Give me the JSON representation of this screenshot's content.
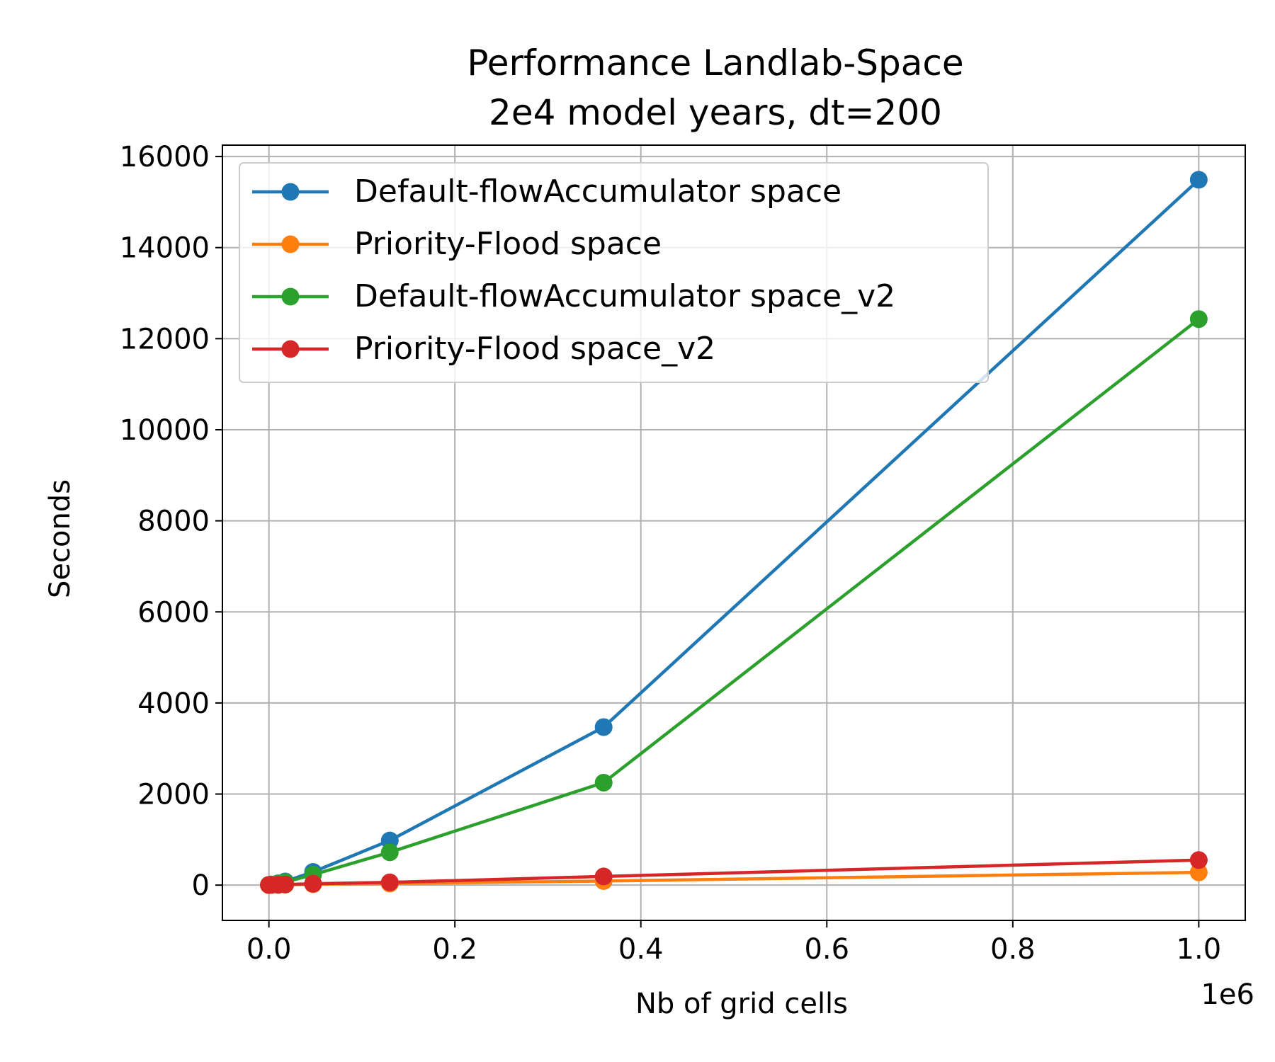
{
  "chart_data": {
    "type": "line",
    "title_line1": "Performance Landlab-Space",
    "title_line2": "2e4 model years, dt=200",
    "xlabel": "Nb of grid cells",
    "ylabel": "Seconds",
    "x_offset_text": "1e6",
    "xlim": [
      -50000,
      1050000
    ],
    "ylim": [
      -775,
      16250
    ],
    "x_ticks": [
      0,
      200000,
      400000,
      600000,
      800000,
      1000000
    ],
    "x_tick_labels": [
      "0.0",
      "0.2",
      "0.4",
      "0.6",
      "0.8",
      "1.0"
    ],
    "y_ticks": [
      0,
      2000,
      4000,
      6000,
      8000,
      10000,
      12000,
      14000,
      16000
    ],
    "y_tick_labels": [
      "0",
      "2000",
      "4000",
      "6000",
      "8000",
      "10000",
      "12000",
      "14000",
      "16000"
    ],
    "grid": true,
    "legend_position": "top-left",
    "series": [
      {
        "name": "Default-flowAccumulator space",
        "color": "#1f77b4",
        "x": [
          0,
          2500,
          10000,
          17500,
          47500,
          130000,
          360000,
          1000000
        ],
        "y": [
          5,
          15,
          40,
          80,
          290,
          980,
          3470,
          15490
        ]
      },
      {
        "name": "Priority-Flood space",
        "color": "#ff7f0e",
        "x": [
          0,
          2500,
          10000,
          17500,
          47500,
          130000,
          360000,
          1000000
        ],
        "y": [
          2,
          3,
          6,
          10,
          20,
          35,
          90,
          280
        ]
      },
      {
        "name": "Default-flowAccumulator space_v2",
        "color": "#2ca02c",
        "x": [
          0,
          2500,
          10000,
          17500,
          47500,
          130000,
          360000,
          1000000
        ],
        "y": [
          5,
          12,
          35,
          65,
          230,
          720,
          2250,
          12430
        ]
      },
      {
        "name": "Priority-Flood space_v2",
        "color": "#d62728",
        "x": [
          0,
          2500,
          10000,
          17500,
          47500,
          130000,
          360000,
          1000000
        ],
        "y": [
          2,
          4,
          8,
          15,
          30,
          60,
          190,
          550
        ]
      }
    ]
  }
}
